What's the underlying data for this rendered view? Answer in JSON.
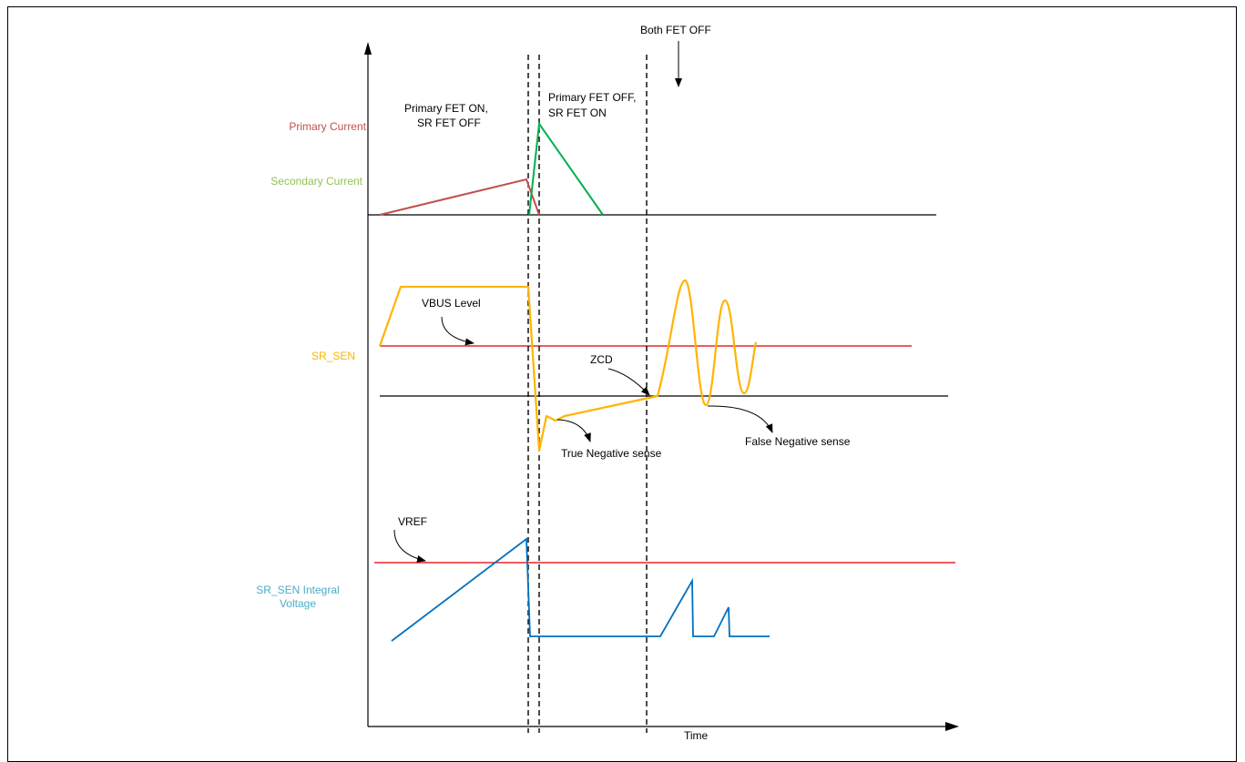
{
  "colors": {
    "primary": "#c0504d",
    "secondary": "#00b050",
    "sr_sen": "#ffb400",
    "integral": "#0070c0",
    "threshold": "#e8262a",
    "axis": "#000000",
    "label_primary": "#c0504d",
    "label_secondary": "#92c353",
    "label_sr_sen": "#ffb400",
    "label_integral": "#4bacc6"
  },
  "signals": {
    "primary_current": "Primary Current",
    "secondary_current": "Secondary Current",
    "sr_sen": "SR_SEN",
    "integral_line1": "SR_SEN Integral",
    "integral_line2": "Voltage"
  },
  "phases": {
    "p1_line1": "Primary FET ON,",
    "p1_line2": "SR FET OFF",
    "p2_line1": "Primary FET OFF,",
    "p2_line2": "SR FET ON",
    "both_off": "Both FET OFF"
  },
  "annotations": {
    "vbus": "VBUS Level",
    "zcd": "ZCD",
    "true_neg": "True Negative sense",
    "false_neg": "False Negative sense",
    "vref": "VREF"
  },
  "axis": {
    "x_label": "Time"
  }
}
